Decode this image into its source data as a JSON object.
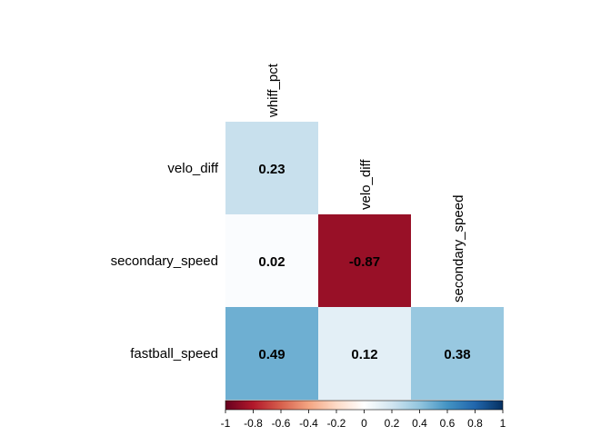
{
  "chart_data": {
    "type": "heatmap",
    "variables": [
      "whiff_pct",
      "velo_diff",
      "secondary_speed",
      "fastball_speed"
    ],
    "row_labels": [
      "velo_diff",
      "secondary_speed",
      "fastball_speed"
    ],
    "col_labels": [
      "whiff_pct",
      "velo_diff",
      "secondary_speed"
    ],
    "cells": [
      {
        "row": "velo_diff",
        "col": "whiff_pct",
        "value": 0.23,
        "label": "0.23"
      },
      {
        "row": "secondary_speed",
        "col": "whiff_pct",
        "value": 0.02,
        "label": "0.02"
      },
      {
        "row": "secondary_speed",
        "col": "velo_diff",
        "value": -0.87,
        "label": "-0.87"
      },
      {
        "row": "fastball_speed",
        "col": "whiff_pct",
        "value": 0.49,
        "label": "0.49"
      },
      {
        "row": "fastball_speed",
        "col": "velo_diff",
        "value": 0.12,
        "label": "0.12"
      },
      {
        "row": "fastball_speed",
        "col": "secondary_speed",
        "value": 0.38,
        "label": "0.38"
      }
    ],
    "color_range": [
      -1,
      1
    ],
    "colorbar_ticks": [
      "-1",
      "-0.8",
      "-0.6",
      "-0.4",
      "-0.2",
      "0",
      "0.2",
      "0.4",
      "0.6",
      "0.8",
      "1"
    ],
    "colorbar_position": "bottom",
    "colormap_stops": [
      "#67001F",
      "#B2182B",
      "#D6604D",
      "#F4A582",
      "#FDDBC7",
      "#FFFFFF",
      "#D1E5F0",
      "#92C5DE",
      "#4393C3",
      "#2166AC",
      "#053061"
    ]
  }
}
